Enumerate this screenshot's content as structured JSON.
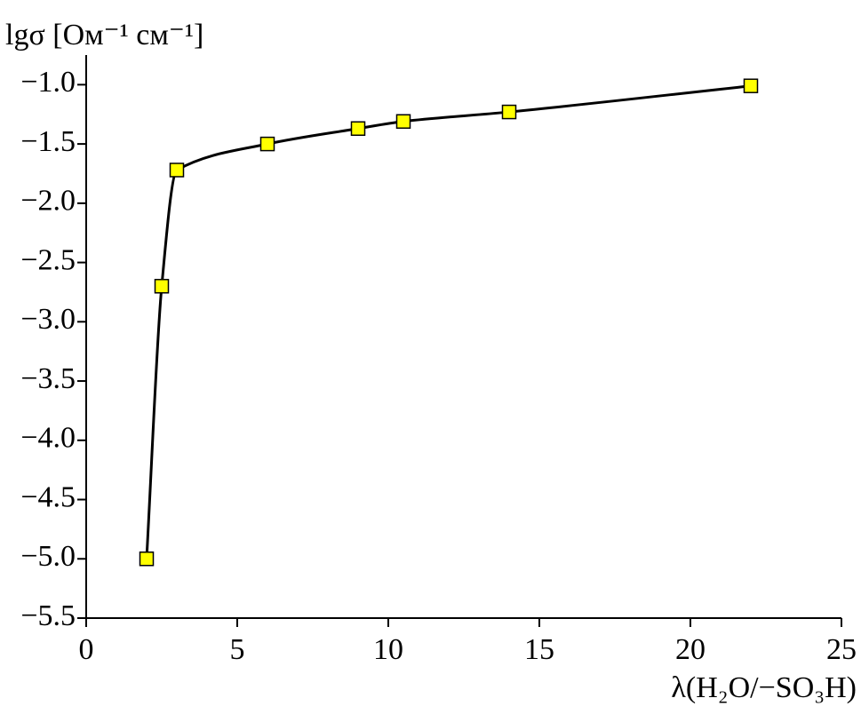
{
  "chart_data": {
    "type": "line",
    "y_label": "lgσ [Ом⁻¹ см⁻¹]",
    "x_label": "λ(H₂O/−SO₃H)",
    "x": [
      2,
      2.5,
      3,
      6,
      9,
      10.5,
      14,
      22
    ],
    "values": [
      -5.0,
      -2.7,
      -1.72,
      -1.5,
      -1.37,
      -1.31,
      -1.23,
      -1.01
    ],
    "color": "#000000",
    "marker_color": "#ffff00",
    "xlim": [
      0,
      25
    ],
    "xticks": [
      0,
      5,
      10,
      15,
      20,
      25
    ],
    "ylim": [
      -5.5,
      -0.75
    ],
    "yticks": [
      {
        "value": -1.0,
        "label": "−1.0"
      },
      {
        "value": -1.5,
        "label": "−1.5"
      },
      {
        "value": -2.0,
        "label": "−2.0"
      },
      {
        "value": -2.5,
        "label": "−2.5"
      },
      {
        "value": -3.0,
        "label": "−3.0"
      },
      {
        "value": -3.5,
        "label": "−3.5"
      },
      {
        "value": -4.0,
        "label": "−4.0"
      },
      {
        "value": -4.5,
        "label": "−4.5"
      },
      {
        "value": -5.0,
        "label": "−5.0"
      },
      {
        "value": -5.5,
        "label": "−5.5"
      }
    ]
  }
}
